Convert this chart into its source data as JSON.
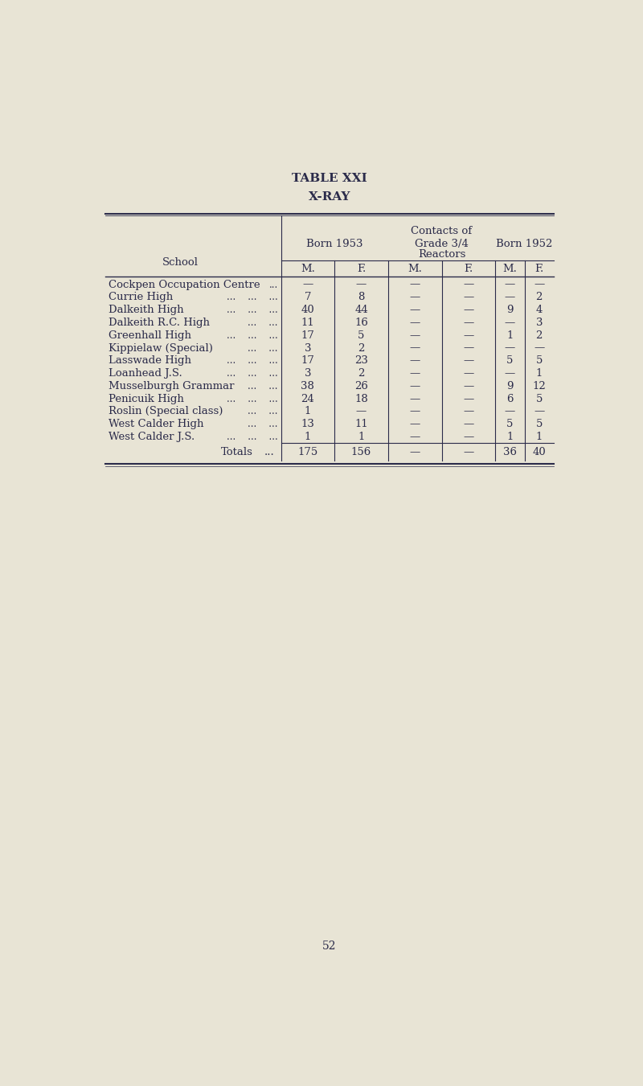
{
  "title": "TABLE XXI",
  "subtitle": "X-RAY",
  "bg_color": "#e8e4d5",
  "text_color": "#2b2b4a",
  "schools": [
    "Cockpen Occupation Centre",
    "Currie High",
    "Dalkeith High",
    "Dalkeith R.C. High",
    "Greenhall High",
    "Kippielaw (Special)",
    "Lasswade High",
    "Loanhead J.S.",
    "Musselburgh Grammar",
    "Penicuik High",
    "Roslin (Special class)",
    "West Calder High",
    "West Calder J.S."
  ],
  "school_dots": [
    "...",
    "...    ...    ...",
    "...    ...    ...",
    "...    ...",
    "...    ...    ...",
    "...    ...",
    "...    ...    ...",
    "...    ...    ...",
    "...    ...",
    "...    ...    ...",
    "...    ...",
    "...    ...",
    "...    ...    ..."
  ],
  "born1953_m": [
    "—",
    "7",
    "40",
    "11",
    "17",
    "3",
    "17",
    "3",
    "38",
    "24",
    "1",
    "13",
    "1"
  ],
  "born1953_f": [
    "—",
    "8",
    "44",
    "16",
    "5",
    "2",
    "23",
    "2",
    "26",
    "18",
    "—",
    "11",
    "1"
  ],
  "contacts_m": [
    "—",
    "—",
    "—",
    "—",
    "—",
    "—",
    "—",
    "—",
    "—",
    "—",
    "—",
    "—",
    "—"
  ],
  "contacts_f": [
    "—",
    "—",
    "—",
    "—",
    "—",
    "—",
    "—",
    "—",
    "—",
    "—",
    "—",
    "—",
    "—"
  ],
  "born1952_m": [
    "—",
    "—",
    "9",
    "—",
    "1",
    "—",
    "5",
    "—",
    "9",
    "6",
    "—",
    "5",
    "1"
  ],
  "born1952_f": [
    "—",
    "2",
    "4",
    "3",
    "2",
    "—",
    "5",
    "1",
    "12",
    "5",
    "—",
    "5",
    "1"
  ],
  "totals_born1953_m": "175",
  "totals_born1953_f": "156",
  "totals_contacts_m": "—",
  "totals_contacts_f": "—",
  "totals_born1952_m": "36",
  "totals_born1952_f": "40",
  "page_number": "52"
}
